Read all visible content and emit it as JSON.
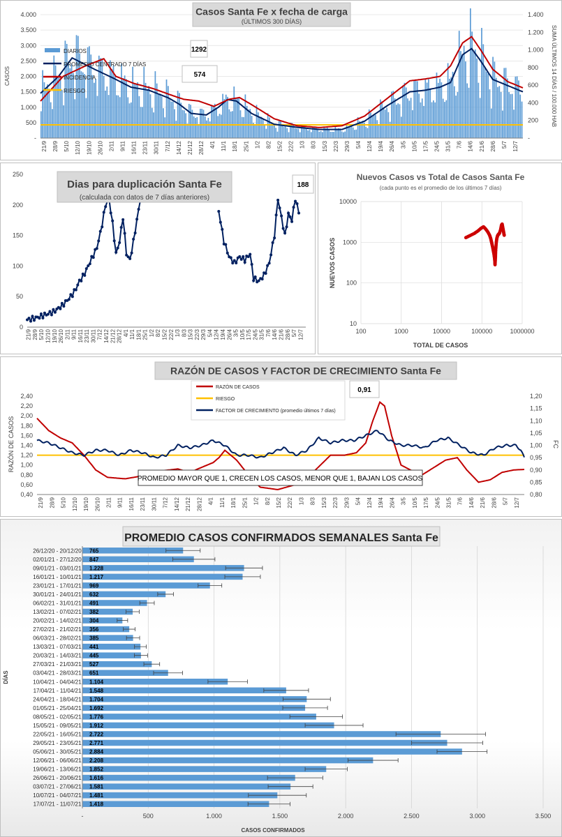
{
  "colors": {
    "bar_blue": "#5b9bd5",
    "line_navy": "#002060",
    "line_red": "#c00000",
    "risk_gold": "#ffc000",
    "red_dark": "#cc0000"
  },
  "chart_data": [
    {
      "id": "casos",
      "type": "bar+line",
      "title": "Casos Santa Fe x fecha de carga",
      "subtitle": "(ÚLTIMOS 300 DÍAS)",
      "ylabel": "CASOS",
      "y2label": "SUMA ÚLTIMOS 14 DÍAS / 100.000 HAB",
      "ylim": [
        0,
        4000
      ],
      "y2lim": [
        0,
        1400
      ],
      "y_ticks": [
        "-",
        "500",
        "1.000",
        "1.500",
        "2.000",
        "2.500",
        "3.000",
        "3.500",
        "4.000"
      ],
      "y2_ticks": [
        "-",
        "200",
        "400",
        "600",
        "800",
        "1.000",
        "1.200",
        "1.400"
      ],
      "x_ticks": [
        "21/9",
        "28/9",
        "5/10",
        "12/10",
        "19/10",
        "26/10",
        "2/11",
        "9/11",
        "16/11",
        "23/11",
        "30/11",
        "7/12",
        "14/12",
        "21/12",
        "28/12",
        "4/1",
        "11/1",
        "18/1",
        "25/1",
        "1/2",
        "8/2",
        "15/2",
        "22/2",
        "1/3",
        "8/3",
        "15/3",
        "22/3",
        "29/3",
        "5/4",
        "12/4",
        "19/4",
        "26/4",
        "3/5",
        "10/5",
        "17/5",
        "24/5",
        "31/5",
        "7/6",
        "14/6",
        "21/6",
        "28/6",
        "5/7",
        "12/7"
      ],
      "legend": [
        "DIARIOS",
        "PROMEDIO CENTRADO 7 DÍAS",
        "INCIDENCIA",
        "RIESGO"
      ],
      "callouts": [
        "1292",
        "574"
      ],
      "risk_value": 150,
      "grid": true,
      "promedio_key_points": [
        [
          0,
          1450
        ],
        [
          12,
          2000
        ],
        [
          21,
          2600
        ],
        [
          35,
          2250
        ],
        [
          48,
          1950
        ],
        [
          60,
          1650
        ],
        [
          72,
          1550
        ],
        [
          85,
          1300
        ],
        [
          92,
          1100
        ],
        [
          100,
          800
        ],
        [
          110,
          750
        ],
        [
          118,
          1000
        ],
        [
          124,
          1250
        ],
        [
          130,
          1200
        ],
        [
          140,
          800
        ],
        [
          155,
          450
        ],
        [
          170,
          350
        ],
        [
          185,
          280
        ],
        [
          200,
          280
        ],
        [
          215,
          550
        ],
        [
          230,
          1050
        ],
        [
          245,
          1500
        ],
        [
          255,
          1550
        ],
        [
          265,
          1650
        ],
        [
          272,
          1800
        ],
        [
          280,
          2700
        ],
        [
          286,
          2900
        ],
        [
          292,
          2500
        ],
        [
          300,
          1900
        ],
        [
          310,
          1700
        ],
        [
          320,
          1500
        ]
      ],
      "incidencia_key_points": [
        [
          0,
          420
        ],
        [
          15,
          700
        ],
        [
          30,
          820
        ],
        [
          42,
          900
        ],
        [
          50,
          700
        ],
        [
          62,
          620
        ],
        [
          75,
          560
        ],
        [
          88,
          480
        ],
        [
          95,
          440
        ],
        [
          105,
          420
        ],
        [
          115,
          360
        ],
        [
          125,
          440
        ],
        [
          132,
          460
        ],
        [
          140,
          380
        ],
        [
          155,
          220
        ],
        [
          170,
          140
        ],
        [
          185,
          120
        ],
        [
          200,
          140
        ],
        [
          215,
          250
        ],
        [
          230,
          450
        ],
        [
          245,
          650
        ],
        [
          255,
          670
        ],
        [
          265,
          700
        ],
        [
          272,
          820
        ],
        [
          280,
          1080
        ],
        [
          286,
          1150
        ],
        [
          292,
          1000
        ],
        [
          300,
          780
        ],
        [
          310,
          640
        ],
        [
          320,
          570
        ]
      ]
    },
    {
      "id": "duplicacion",
      "type": "line",
      "title": "Dias para duplicación Santa Fe",
      "subtitle": "(calculada con datos de 7 días anteriores)",
      "callout": "188",
      "ylim": [
        0,
        250
      ],
      "y_ticks": [
        "0",
        "50",
        "100",
        "150",
        "200",
        "250"
      ],
      "x_ticks": [
        "21/9",
        "28/9",
        "5/10",
        "12/10",
        "19/10",
        "26/10",
        "2/11",
        "9/11",
        "16/11",
        "23/11",
        "30/11",
        "7/12",
        "14/12",
        "21/12",
        "28/12",
        "4/1",
        "11/1",
        "18/1",
        "25/1",
        "1/2",
        "8/2",
        "15/2",
        "22/2",
        "1/3",
        "8/3",
        "15/3",
        "22/3",
        "29/3",
        "5/4",
        "12/4",
        "19/4",
        "26/4",
        "3/5",
        "10/5",
        "17/5",
        "24/5",
        "31/5",
        "7/6",
        "14/6",
        "21/6",
        "28/6",
        "5/7",
        "12/7"
      ],
      "segments": [
        [
          [
            0,
            12
          ],
          [
            10,
            15
          ],
          [
            20,
            20
          ],
          [
            30,
            25
          ],
          [
            40,
            35
          ],
          [
            50,
            50
          ],
          [
            55,
            60
          ],
          [
            60,
            75
          ],
          [
            65,
            85
          ],
          [
            70,
            100
          ],
          [
            75,
            115
          ],
          [
            80,
            130
          ],
          [
            85,
            160
          ],
          [
            90,
            200
          ],
          [
            94,
            210
          ],
          [
            98,
            170
          ],
          [
            102,
            120
          ],
          [
            106,
            140
          ],
          [
            110,
            180
          ],
          [
            114,
            120
          ],
          [
            118,
            110
          ],
          [
            122,
            140
          ],
          [
            126,
            175
          ],
          [
            130,
            210
          ]
        ],
        [
          [
            220,
            190
          ],
          [
            226,
            140
          ],
          [
            232,
            115
          ],
          [
            238,
            105
          ],
          [
            244,
            115
          ],
          [
            250,
            110
          ],
          [
            256,
            120
          ],
          [
            260,
            80
          ],
          [
            266,
            75
          ],
          [
            272,
            85
          ],
          [
            278,
            105
          ],
          [
            284,
            150
          ],
          [
            288,
            210
          ],
          [
            292,
            180
          ],
          [
            296,
            150
          ],
          [
            300,
            185
          ],
          [
            304,
            175
          ],
          [
            308,
            210
          ],
          [
            312,
            188
          ]
        ]
      ]
    },
    {
      "id": "nuevos_vs_total",
      "type": "scatter",
      "title": "Nuevos Casos vs Total de Casos Santa Fe",
      "subtitle": "(cada punto es el promedio de los últimos 7 días)",
      "xlabel": "TOTAL DE CASOS",
      "ylabel": "NUEVOS CASOS",
      "x_scale": "log",
      "y_scale": "log",
      "xlim": [
        100,
        1000000
      ],
      "ylim": [
        10,
        10000
      ],
      "x_ticks": [
        "100",
        "1000",
        "10000",
        "100000",
        "1000000"
      ],
      "y_ticks": [
        "10",
        "100",
        "1000",
        "10000"
      ],
      "points": [
        [
          40000,
          1300
        ],
        [
          50000,
          1450
        ],
        [
          65000,
          1650
        ],
        [
          80000,
          1900
        ],
        [
          95000,
          2200
        ],
        [
          110000,
          2400
        ],
        [
          125000,
          2100
        ],
        [
          140000,
          1800
        ],
        [
          155000,
          1500
        ],
        [
          165000,
          1250
        ],
        [
          172000,
          1050
        ],
        [
          178000,
          900
        ],
        [
          185000,
          760
        ],
        [
          192000,
          620
        ],
        [
          200000,
          500
        ],
        [
          205000,
          420
        ],
        [
          210000,
          330
        ],
        [
          212000,
          280
        ],
        [
          215000,
          360
        ],
        [
          218000,
          470
        ],
        [
          222000,
          700
        ],
        [
          228000,
          1000
        ],
        [
          235000,
          1250
        ],
        [
          245000,
          1450
        ],
        [
          255000,
          1550
        ],
        [
          265000,
          1600
        ],
        [
          275000,
          1700
        ],
        [
          290000,
          2000
        ],
        [
          305000,
          2600
        ],
        [
          318000,
          2800
        ],
        [
          330000,
          2300
        ],
        [
          342000,
          1900
        ],
        [
          352000,
          1600
        ],
        [
          360000,
          1450
        ]
      ]
    },
    {
      "id": "razon",
      "type": "line",
      "title": "RAZÓN DE CASOS Y FACTOR DE CRECIMIENTO Santa Fe",
      "ylabel": "RAZÓN DE CASOS",
      "y2label": "FC",
      "ylim": [
        0.4,
        2.4
      ],
      "y2lim": [
        0.8,
        1.2
      ],
      "y_ticks": [
        "0,40",
        "0,60",
        "0,80",
        "1,00",
        "1,20",
        "1,40",
        "1,60",
        "1,80",
        "2,00",
        "2,20",
        "2,40"
      ],
      "y2_ticks": [
        "0,80",
        "0,85",
        "0,90",
        "0,95",
        "1,00",
        "1,05",
        "1,10",
        "1,15",
        "1,20"
      ],
      "x_ticks": [
        "21/9",
        "28/9",
        "5/10",
        "12/10",
        "19/10",
        "26/10",
        "2/11",
        "9/11",
        "16/11",
        "23/11",
        "30/11",
        "7/12",
        "14/12",
        "21/12",
        "28/12",
        "4/1",
        "11/1",
        "18/1",
        "25/1",
        "1/2",
        "8/2",
        "15/2",
        "22/2",
        "1/3",
        "8/3",
        "15/3",
        "22/3",
        "29/3",
        "5/4",
        "12/4",
        "19/4",
        "26/4",
        "3/5",
        "10/5",
        "17/5",
        "24/5",
        "31/5",
        "7/6",
        "14/6",
        "21/6",
        "28/6",
        "5/7",
        "12/7"
      ],
      "legend": [
        "RAZÓN DE CASOS",
        "RIESGO",
        "FACTOR DE CRECIMIENTO (promedio últimos 7 días)"
      ],
      "callout": "0,91",
      "note": "PROMEDIO MAYOR QUE 1, CRECEN LOS CASOS, MENOR QUE 1, BAJAN LOS CASOS",
      "risk_value": 1.2,
      "razon_key_points": [
        [
          0,
          1.95
        ],
        [
          10,
          1.7
        ],
        [
          20,
          1.55
        ],
        [
          30,
          1.45
        ],
        [
          40,
          1.2
        ],
        [
          50,
          0.9
        ],
        [
          60,
          0.75
        ],
        [
          75,
          0.72
        ],
        [
          90,
          0.78
        ],
        [
          105,
          0.88
        ],
        [
          120,
          0.92
        ],
        [
          130,
          0.85
        ],
        [
          140,
          0.95
        ],
        [
          150,
          1.05
        ],
        [
          155,
          1.15
        ],
        [
          160,
          1.3
        ],
        [
          170,
          1.1
        ],
        [
          180,
          0.8
        ],
        [
          190,
          0.55
        ],
        [
          205,
          0.5
        ],
        [
          220,
          0.6
        ],
        [
          235,
          0.85
        ],
        [
          250,
          1.2
        ],
        [
          262,
          1.2
        ],
        [
          272,
          1.25
        ],
        [
          280,
          1.45
        ],
        [
          286,
          1.9
        ],
        [
          292,
          2.28
        ],
        [
          296,
          2.2
        ],
        [
          302,
          1.6
        ],
        [
          310,
          1.0
        ],
        [
          318,
          0.9
        ],
        [
          328,
          0.8
        ],
        [
          338,
          0.95
        ],
        [
          348,
          1.1
        ],
        [
          358,
          1.15
        ],
        [
          366,
          0.9
        ],
        [
          376,
          0.65
        ],
        [
          386,
          0.7
        ],
        [
          396,
          0.85
        ],
        [
          406,
          0.9
        ],
        [
          415,
          0.91
        ]
      ],
      "fc_key_points": [
        [
          0,
          1.02
        ],
        [
          10,
          1.01
        ],
        [
          20,
          0.99
        ],
        [
          30,
          0.97
        ],
        [
          40,
          0.96
        ],
        [
          50,
          0.98
        ],
        [
          60,
          0.98
        ],
        [
          70,
          0.96
        ],
        [
          80,
          0.98
        ],
        [
          90,
          0.97
        ],
        [
          100,
          0.95
        ],
        [
          110,
          0.96
        ],
        [
          120,
          1.0
        ],
        [
          130,
          0.99
        ],
        [
          140,
          1.0
        ],
        [
          150,
          1.02
        ],
        [
          160,
          1.0
        ],
        [
          170,
          0.96
        ],
        [
          180,
          0.96
        ],
        [
          190,
          0.95
        ],
        [
          200,
          0.97
        ],
        [
          210,
          0.99
        ],
        [
          220,
          0.96
        ],
        [
          230,
          0.98
        ],
        [
          240,
          1.03
        ],
        [
          250,
          1.01
        ],
        [
          260,
          1.02
        ],
        [
          270,
          1.02
        ],
        [
          280,
          1.04
        ],
        [
          290,
          1.06
        ],
        [
          300,
          1.02
        ],
        [
          310,
          1.0
        ],
        [
          320,
          1.0
        ],
        [
          330,
          0.99
        ],
        [
          340,
          1.02
        ],
        [
          350,
          1.03
        ],
        [
          360,
          1.0
        ],
        [
          370,
          0.97
        ],
        [
          380,
          0.96
        ],
        [
          390,
          0.99
        ],
        [
          400,
          1.0
        ],
        [
          408,
          1.0
        ],
        [
          412,
          0.98
        ],
        [
          415,
          0.95
        ]
      ]
    },
    {
      "id": "semanales",
      "type": "bar",
      "orientation": "horizontal",
      "title": "PROMEDIO CASOS CONFIRMADOS SEMANALES Santa Fe",
      "xlabel": "CASOS CONFIRMADOS",
      "ylabel": "DÍAS",
      "xlim": [
        0,
        3500
      ],
      "x_ticks": [
        "-",
        "500",
        "1.000",
        "1.500",
        "2.000",
        "2.500",
        "3.000",
        "3.500"
      ],
      "categories": [
        "26/12/20 - 20/12/20",
        "02/01/21 - 27/12/20",
        "09/01/21 - 03/01/21",
        "16/01/21 - 10/01/21",
        "23/01/21 - 17/01/21",
        "30/01/21 - 24/01/21",
        "06/02/21 - 31/01/21",
        "13/02/21 - 07/02/21",
        "20/02/21 - 14/02/21",
        "27/02/21 - 21/02/21",
        "06/03/21 - 28/02/21",
        "13/03/21 - 07/03/21",
        "20/03/21 - 14/03/21",
        "27/03/21 - 21/03/21",
        "03/04/21 - 28/03/21",
        "10/04/21 - 04/04/21",
        "17/04/21 - 11/04/21",
        "24/04/21 - 18/04/21",
        "01/05/21 - 25/04/21",
        "08/05/21 - 02/05/21",
        "15/05/21 - 09/05/21",
        "22/05/21 - 16/05/21",
        "29/05/21 - 23/05/21",
        "05/06/21 - 30/05/21",
        "12/06/21 - 06/06/21",
        "19/06/21 - 13/06/21",
        "26/06/21 - 20/06/21",
        "03/07/21 - 27/06/21",
        "10/07/21 - 04/07/21",
        "17/07/21 - 11/07/21"
      ],
      "value_labels": [
        "765",
        "847",
        "1.228",
        "1.217",
        "969",
        "632",
        "491",
        "382",
        "304",
        "356",
        "385",
        "441",
        "445",
        "527",
        "651",
        "1.104",
        "1.548",
        "1.704",
        "1.692",
        "1.776",
        "1.912",
        "2.722",
        "2.771",
        "2.884",
        "2.208",
        "1.852",
        "1.616",
        "1.581",
        "1.481",
        "1.418"
      ],
      "values": [
        765,
        847,
        1228,
        1217,
        969,
        632,
        491,
        382,
        304,
        356,
        385,
        441,
        445,
        527,
        651,
        1104,
        1548,
        1704,
        1692,
        1776,
        1912,
        2722,
        2771,
        2884,
        2208,
        1852,
        1616,
        1581,
        1481,
        1418
      ],
      "error": [
        130,
        160,
        140,
        135,
        90,
        60,
        55,
        50,
        40,
        45,
        50,
        45,
        50,
        60,
        110,
        150,
        170,
        180,
        170,
        200,
        220,
        340,
        270,
        190,
        190,
        160,
        210,
        170,
        220,
        160
      ]
    }
  ]
}
